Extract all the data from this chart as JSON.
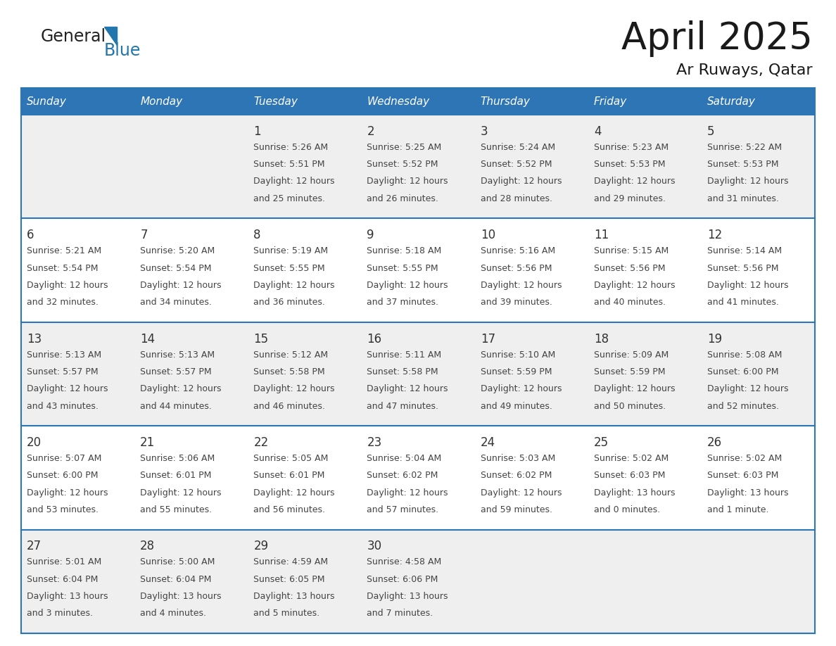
{
  "title": "April 2025",
  "subtitle": "Ar Ruways, Qatar",
  "header_color": "#2E75B6",
  "header_text_color": "#FFFFFF",
  "days_of_week": [
    "Sunday",
    "Monday",
    "Tuesday",
    "Wednesday",
    "Thursday",
    "Friday",
    "Saturday"
  ],
  "weeks": [
    [
      {
        "day": "",
        "lines": []
      },
      {
        "day": "",
        "lines": []
      },
      {
        "day": "1",
        "lines": [
          "Sunrise: 5:26 AM",
          "Sunset: 5:51 PM",
          "Daylight: 12 hours",
          "and 25 minutes."
        ]
      },
      {
        "day": "2",
        "lines": [
          "Sunrise: 5:25 AM",
          "Sunset: 5:52 PM",
          "Daylight: 12 hours",
          "and 26 minutes."
        ]
      },
      {
        "day": "3",
        "lines": [
          "Sunrise: 5:24 AM",
          "Sunset: 5:52 PM",
          "Daylight: 12 hours",
          "and 28 minutes."
        ]
      },
      {
        "day": "4",
        "lines": [
          "Sunrise: 5:23 AM",
          "Sunset: 5:53 PM",
          "Daylight: 12 hours",
          "and 29 minutes."
        ]
      },
      {
        "day": "5",
        "lines": [
          "Sunrise: 5:22 AM",
          "Sunset: 5:53 PM",
          "Daylight: 12 hours",
          "and 31 minutes."
        ]
      }
    ],
    [
      {
        "day": "6",
        "lines": [
          "Sunrise: 5:21 AM",
          "Sunset: 5:54 PM",
          "Daylight: 12 hours",
          "and 32 minutes."
        ]
      },
      {
        "day": "7",
        "lines": [
          "Sunrise: 5:20 AM",
          "Sunset: 5:54 PM",
          "Daylight: 12 hours",
          "and 34 minutes."
        ]
      },
      {
        "day": "8",
        "lines": [
          "Sunrise: 5:19 AM",
          "Sunset: 5:55 PM",
          "Daylight: 12 hours",
          "and 36 minutes."
        ]
      },
      {
        "day": "9",
        "lines": [
          "Sunrise: 5:18 AM",
          "Sunset: 5:55 PM",
          "Daylight: 12 hours",
          "and 37 minutes."
        ]
      },
      {
        "day": "10",
        "lines": [
          "Sunrise: 5:16 AM",
          "Sunset: 5:56 PM",
          "Daylight: 12 hours",
          "and 39 minutes."
        ]
      },
      {
        "day": "11",
        "lines": [
          "Sunrise: 5:15 AM",
          "Sunset: 5:56 PM",
          "Daylight: 12 hours",
          "and 40 minutes."
        ]
      },
      {
        "day": "12",
        "lines": [
          "Sunrise: 5:14 AM",
          "Sunset: 5:56 PM",
          "Daylight: 12 hours",
          "and 41 minutes."
        ]
      }
    ],
    [
      {
        "day": "13",
        "lines": [
          "Sunrise: 5:13 AM",
          "Sunset: 5:57 PM",
          "Daylight: 12 hours",
          "and 43 minutes."
        ]
      },
      {
        "day": "14",
        "lines": [
          "Sunrise: 5:13 AM",
          "Sunset: 5:57 PM",
          "Daylight: 12 hours",
          "and 44 minutes."
        ]
      },
      {
        "day": "15",
        "lines": [
          "Sunrise: 5:12 AM",
          "Sunset: 5:58 PM",
          "Daylight: 12 hours",
          "and 46 minutes."
        ]
      },
      {
        "day": "16",
        "lines": [
          "Sunrise: 5:11 AM",
          "Sunset: 5:58 PM",
          "Daylight: 12 hours",
          "and 47 minutes."
        ]
      },
      {
        "day": "17",
        "lines": [
          "Sunrise: 5:10 AM",
          "Sunset: 5:59 PM",
          "Daylight: 12 hours",
          "and 49 minutes."
        ]
      },
      {
        "day": "18",
        "lines": [
          "Sunrise: 5:09 AM",
          "Sunset: 5:59 PM",
          "Daylight: 12 hours",
          "and 50 minutes."
        ]
      },
      {
        "day": "19",
        "lines": [
          "Sunrise: 5:08 AM",
          "Sunset: 6:00 PM",
          "Daylight: 12 hours",
          "and 52 minutes."
        ]
      }
    ],
    [
      {
        "day": "20",
        "lines": [
          "Sunrise: 5:07 AM",
          "Sunset: 6:00 PM",
          "Daylight: 12 hours",
          "and 53 minutes."
        ]
      },
      {
        "day": "21",
        "lines": [
          "Sunrise: 5:06 AM",
          "Sunset: 6:01 PM",
          "Daylight: 12 hours",
          "and 55 minutes."
        ]
      },
      {
        "day": "22",
        "lines": [
          "Sunrise: 5:05 AM",
          "Sunset: 6:01 PM",
          "Daylight: 12 hours",
          "and 56 minutes."
        ]
      },
      {
        "day": "23",
        "lines": [
          "Sunrise: 5:04 AM",
          "Sunset: 6:02 PM",
          "Daylight: 12 hours",
          "and 57 minutes."
        ]
      },
      {
        "day": "24",
        "lines": [
          "Sunrise: 5:03 AM",
          "Sunset: 6:02 PM",
          "Daylight: 12 hours",
          "and 59 minutes."
        ]
      },
      {
        "day": "25",
        "lines": [
          "Sunrise: 5:02 AM",
          "Sunset: 6:03 PM",
          "Daylight: 13 hours",
          "and 0 minutes."
        ]
      },
      {
        "day": "26",
        "lines": [
          "Sunrise: 5:02 AM",
          "Sunset: 6:03 PM",
          "Daylight: 13 hours",
          "and 1 minute."
        ]
      }
    ],
    [
      {
        "day": "27",
        "lines": [
          "Sunrise: 5:01 AM",
          "Sunset: 6:04 PM",
          "Daylight: 13 hours",
          "and 3 minutes."
        ]
      },
      {
        "day": "28",
        "lines": [
          "Sunrise: 5:00 AM",
          "Sunset: 6:04 PM",
          "Daylight: 13 hours",
          "and 4 minutes."
        ]
      },
      {
        "day": "29",
        "lines": [
          "Sunrise: 4:59 AM",
          "Sunset: 6:05 PM",
          "Daylight: 13 hours",
          "and 5 minutes."
        ]
      },
      {
        "day": "30",
        "lines": [
          "Sunrise: 4:58 AM",
          "Sunset: 6:06 PM",
          "Daylight: 13 hours",
          "and 7 minutes."
        ]
      },
      {
        "day": "",
        "lines": []
      },
      {
        "day": "",
        "lines": []
      },
      {
        "day": "",
        "lines": []
      }
    ]
  ],
  "border_color": "#2E75B6",
  "row_bg_colors": [
    "#EFEFEF",
    "#FFFFFF",
    "#EFEFEF",
    "#FFFFFF",
    "#EFEFEF"
  ],
  "text_color": "#333333",
  "day_num_color": "#333333",
  "cell_text_color": "#444444"
}
